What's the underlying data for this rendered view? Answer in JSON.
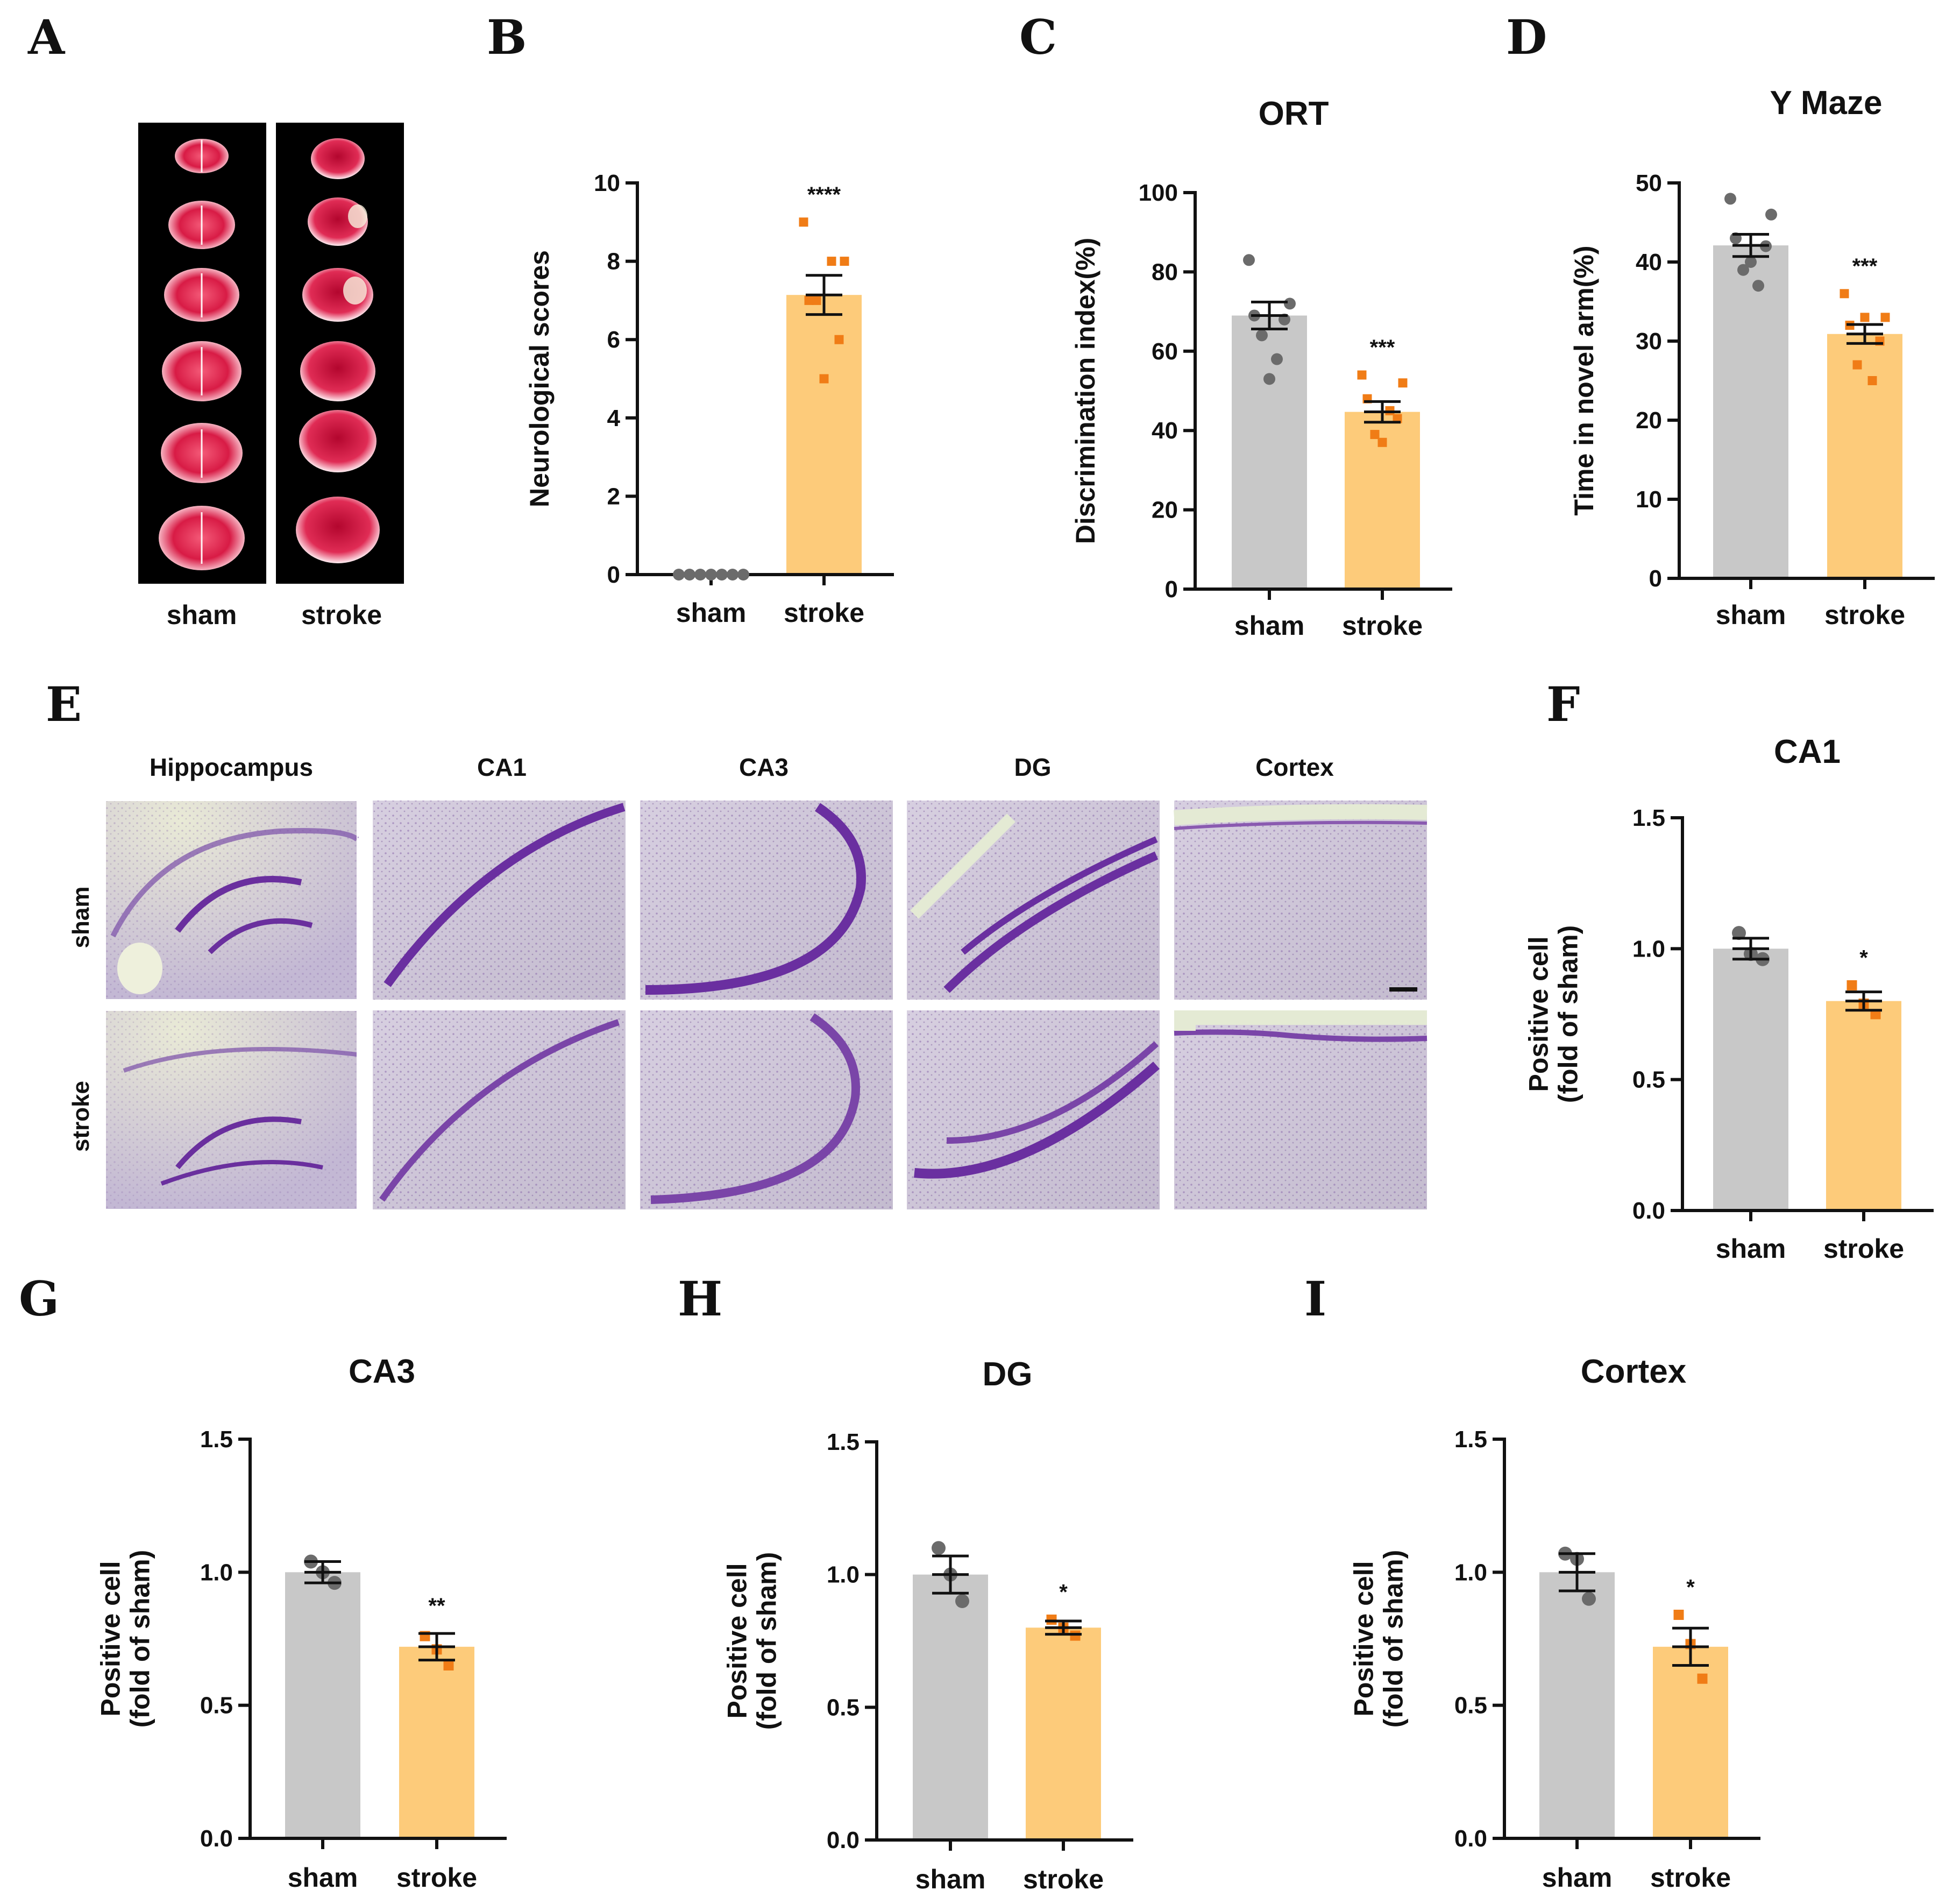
{
  "colors": {
    "sham": "#c8c8c8",
    "stroke": "#fdcb7a",
    "sham_point": "#6b6b6b",
    "stroke_point": "#f07c16",
    "axis": "#111111"
  },
  "panel_letters": [
    "A",
    "B",
    "C",
    "D",
    "E",
    "F",
    "G",
    "H",
    "I"
  ],
  "panel_a": {
    "labels": [
      "sham",
      "stroke"
    ],
    "description_icon": "brain-section-photo"
  },
  "panel_e": {
    "columns": [
      "Hippocampus",
      "CA1",
      "CA3",
      "DG",
      "Cortex"
    ],
    "rows": [
      "sham",
      "stroke"
    ],
    "description_icon": "nissl-stain-micrograph"
  },
  "chart_data": [
    {
      "id": "B",
      "type": "bar",
      "title": "",
      "ylabel": "Neurological scores",
      "categories": [
        "sham",
        "stroke"
      ],
      "ylim": [
        0,
        10
      ],
      "yticks": [
        "0",
        "2",
        "4",
        "6",
        "8",
        "10"
      ],
      "means": [
        0,
        7.14
      ],
      "sem": [
        0,
        0.5
      ],
      "points": [
        [
          0,
          0,
          0,
          0,
          0,
          0,
          0
        ],
        [
          9,
          8,
          7,
          6,
          7,
          8,
          5
        ]
      ],
      "significance": "****"
    },
    {
      "id": "C",
      "type": "bar",
      "title": "ORT",
      "ylabel": "Discrimination index(%)",
      "categories": [
        "sham",
        "stroke"
      ],
      "ylim": [
        0,
        100
      ],
      "yticks": [
        "0",
        "20",
        "40",
        "60",
        "80",
        "100"
      ],
      "means": [
        69,
        44.7
      ],
      "sem": [
        3.4,
        2.6
      ],
      "points": [
        [
          83,
          72,
          69,
          68,
          64,
          58,
          53
        ],
        [
          54,
          52,
          48,
          43,
          39,
          45,
          37
        ]
      ],
      "significance": "***"
    },
    {
      "id": "D",
      "type": "bar",
      "title": "Y Maze",
      "ylabel": "Time in novel arm(%)",
      "categories": [
        "sham",
        "stroke"
      ],
      "ylim": [
        0,
        50
      ],
      "yticks": [
        "0",
        "10",
        "20",
        "30",
        "40",
        "50"
      ],
      "means": [
        42.1,
        30.9
      ],
      "sem": [
        1.4,
        1.2
      ],
      "points": [
        [
          48,
          46,
          43,
          42,
          39,
          37,
          40
        ],
        [
          36,
          33,
          32,
          30,
          27,
          25,
          33
        ]
      ],
      "significance": "***"
    },
    {
      "id": "F",
      "type": "bar",
      "title": "CA1",
      "ylabel": "Positive cell (fold of sham)",
      "categories": [
        "sham",
        "stroke"
      ],
      "ylim": [
        0,
        1.5
      ],
      "yticks": [
        "0.0",
        "0.5",
        "1.0",
        "1.5"
      ],
      "means": [
        1.0,
        0.8
      ],
      "sem": [
        0.04,
        0.035
      ],
      "points": [
        [
          1.06,
          0.98,
          0.96
        ],
        [
          0.86,
          0.79,
          0.75
        ]
      ],
      "significance": "*"
    },
    {
      "id": "G",
      "type": "bar",
      "title": "CA3",
      "ylabel": "Positive cell (fold of sham)",
      "categories": [
        "sham",
        "stroke"
      ],
      "ylim": [
        0,
        1.5
      ],
      "yticks": [
        "0.0",
        "0.5",
        "1.0",
        "1.5"
      ],
      "means": [
        1.0,
        0.72
      ],
      "sem": [
        0.04,
        0.05
      ],
      "points": [
        [
          1.04,
          1.0,
          0.96
        ],
        [
          0.76,
          0.71,
          0.65
        ]
      ],
      "significance": "**"
    },
    {
      "id": "H",
      "type": "bar",
      "title": "DG",
      "ylabel": "Positive cell (fold of sham)",
      "categories": [
        "sham",
        "stroke"
      ],
      "ylim": [
        0,
        1.5
      ],
      "yticks": [
        "0.0",
        "0.5",
        "1.0",
        "1.5"
      ],
      "means": [
        1.0,
        0.8
      ],
      "sem": [
        0.07,
        0.025
      ],
      "points": [
        [
          1.1,
          1.0,
          0.9
        ],
        [
          0.83,
          0.8,
          0.77
        ]
      ],
      "significance": "*"
    },
    {
      "id": "I",
      "type": "bar",
      "title": "Cortex",
      "ylabel": "Positive cell (fold of sham)",
      "categories": [
        "sham",
        "stroke"
      ],
      "ylim": [
        0,
        1.5
      ],
      "yticks": [
        "0.0",
        "0.5",
        "1.0",
        "1.5"
      ],
      "means": [
        1.0,
        0.72
      ],
      "sem": [
        0.07,
        0.07
      ],
      "points": [
        [
          1.07,
          1.05,
          0.9
        ],
        [
          0.84,
          0.73,
          0.6
        ]
      ],
      "significance": "*"
    }
  ]
}
